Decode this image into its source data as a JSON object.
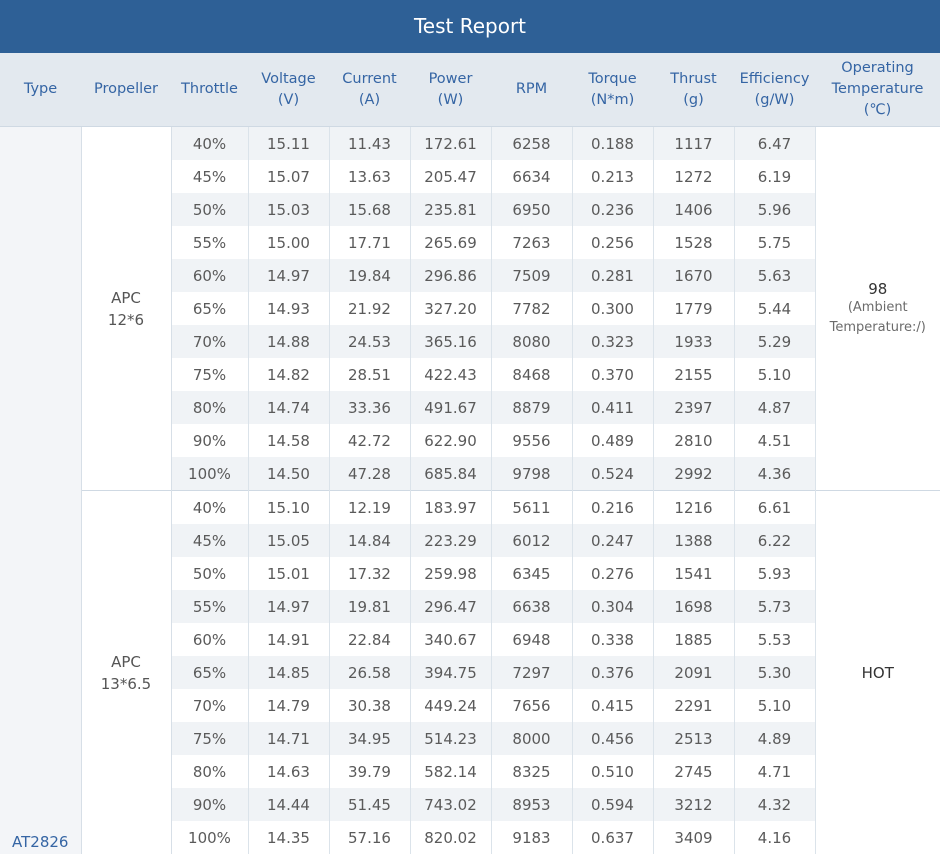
{
  "title": "Test Report",
  "headers": [
    {
      "line1": "Type",
      "line2": ""
    },
    {
      "line1": "Propeller",
      "line2": ""
    },
    {
      "line1": "Throttle",
      "line2": ""
    },
    {
      "line1": "Voltage",
      "line2": "(V)"
    },
    {
      "line1": "Current",
      "line2": "(A)"
    },
    {
      "line1": "Power",
      "line2": "(W)"
    },
    {
      "line1": "RPM",
      "line2": ""
    },
    {
      "line1": "Torque",
      "line2": "(N*m)"
    },
    {
      "line1": "Thrust",
      "line2": "(g)"
    },
    {
      "line1": "Efficiency",
      "line2": "(g/W)"
    },
    {
      "line1": "Operating",
      "line2": "Temperature",
      "line3": "(℃)"
    }
  ],
  "type": "AT2826",
  "groups": [
    {
      "propeller_line1": "APC",
      "propeller_line2": "12*6",
      "temperature": "98",
      "temperature_note_line1": "(Ambient",
      "temperature_note_line2": "Temperature:/)",
      "rows": [
        [
          "40%",
          "15.11",
          "11.43",
          "172.61",
          "6258",
          "0.188",
          "1117",
          "6.47"
        ],
        [
          "45%",
          "15.07",
          "13.63",
          "205.47",
          "6634",
          "0.213",
          "1272",
          "6.19"
        ],
        [
          "50%",
          "15.03",
          "15.68",
          "235.81",
          "6950",
          "0.236",
          "1406",
          "5.96"
        ],
        [
          "55%",
          "15.00",
          "17.71",
          "265.69",
          "7263",
          "0.256",
          "1528",
          "5.75"
        ],
        [
          "60%",
          "14.97",
          "19.84",
          "296.86",
          "7509",
          "0.281",
          "1670",
          "5.63"
        ],
        [
          "65%",
          "14.93",
          "21.92",
          "327.20",
          "7782",
          "0.300",
          "1779",
          "5.44"
        ],
        [
          "70%",
          "14.88",
          "24.53",
          "365.16",
          "8080",
          "0.323",
          "1933",
          "5.29"
        ],
        [
          "75%",
          "14.82",
          "28.51",
          "422.43",
          "8468",
          "0.370",
          "2155",
          "5.10"
        ],
        [
          "80%",
          "14.74",
          "33.36",
          "491.67",
          "8879",
          "0.411",
          "2397",
          "4.87"
        ],
        [
          "90%",
          "14.58",
          "42.72",
          "622.90",
          "9556",
          "0.489",
          "2810",
          "4.51"
        ],
        [
          "100%",
          "14.50",
          "47.28",
          "685.84",
          "9798",
          "0.524",
          "2992",
          "4.36"
        ]
      ]
    },
    {
      "propeller_line1": "APC",
      "propeller_line2": "13*6.5",
      "temperature": "HOT",
      "temperature_note_line1": "",
      "temperature_note_line2": "",
      "rows": [
        [
          "40%",
          "15.10",
          "12.19",
          "183.97",
          "5611",
          "0.216",
          "1216",
          "6.61"
        ],
        [
          "45%",
          "15.05",
          "14.84",
          "223.29",
          "6012",
          "0.247",
          "1388",
          "6.22"
        ],
        [
          "50%",
          "15.01",
          "17.32",
          "259.98",
          "6345",
          "0.276",
          "1541",
          "5.93"
        ],
        [
          "55%",
          "14.97",
          "19.81",
          "296.47",
          "6638",
          "0.304",
          "1698",
          "5.73"
        ],
        [
          "60%",
          "14.91",
          "22.84",
          "340.67",
          "6948",
          "0.338",
          "1885",
          "5.53"
        ],
        [
          "65%",
          "14.85",
          "26.58",
          "394.75",
          "7297",
          "0.376",
          "2091",
          "5.30"
        ],
        [
          "70%",
          "14.79",
          "30.38",
          "449.24",
          "7656",
          "0.415",
          "2291",
          "5.10"
        ],
        [
          "75%",
          "14.71",
          "34.95",
          "514.23",
          "8000",
          "0.456",
          "2513",
          "4.89"
        ],
        [
          "80%",
          "14.63",
          "39.79",
          "582.14",
          "8325",
          "0.510",
          "2745",
          "4.71"
        ],
        [
          "90%",
          "14.44",
          "51.45",
          "743.02",
          "8953",
          "0.594",
          "3212",
          "4.32"
        ],
        [
          "100%",
          "14.35",
          "57.16",
          "820.02",
          "9183",
          "0.637",
          "3409",
          "4.16"
        ]
      ]
    }
  ]
}
